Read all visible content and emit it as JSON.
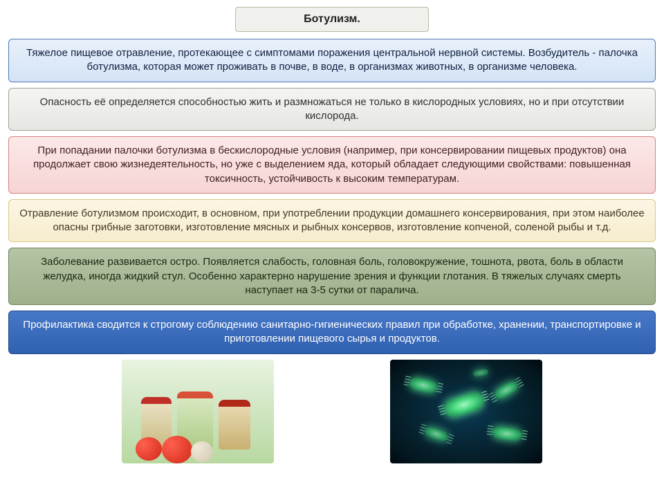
{
  "title": {
    "text": "Ботулизм.",
    "bg": "#f0f0ec",
    "border": "#b8b8a8",
    "text_color": "#202020",
    "fontsize": 16
  },
  "boxes": [
    {
      "text": "Тяжелое пищевое отравление, протекающее с симптомами поражения центральной нервной системы. Возбудитель - палочка ботулизма, которая может проживать в почве, в воде, в организмах животных, в организме человека.",
      "bg_top": "#e8f0fa",
      "bg_bottom": "#d4e4f6",
      "border": "#5078b0",
      "text_color": "#102040"
    },
    {
      "text": "Опасность её определяется способностью жить и размножаться не только в кислородных условиях, но и при отсутствии кислорода.",
      "bg_top": "#f4f4f2",
      "bg_bottom": "#e6e6e2",
      "border": "#a0a098",
      "text_color": "#303030"
    },
    {
      "text": "При попадании палочки ботулизма в бескислородные условия (например, при консервировании пищевых продуктов) она продолжает свою жизнедеятельность, но уже с выделением яда, который обладает следующими свойствами: повышенная токсичность, устойчивость к высоким температурам.",
      "bg_top": "#fce8e8",
      "bg_bottom": "#f6d4d4",
      "border": "#d88080",
      "text_color": "#402020"
    },
    {
      "text": "Отравление ботулизмом происходит, в основном, при употреблении продукции домашнего консервирования, при этом наиболее опасны грибные заготовки, изготовление мясных и рыбных консервов, изготовление копченой, соленой рыбы и т.д.",
      "bg_top": "#fcf6e4",
      "bg_bottom": "#f6ecce",
      "border": "#d8c888",
      "text_color": "#403820"
    },
    {
      "text": "Заболевание развивается остро. Появляется слабость, головная боль, головокружение, тошнота, рвота, боль в области желудка, иногда жидкий стул. Особенно характерно нарушение зрения и функции глотания. В тяжелых случаях смерть наступает на 3-5 сутки от паралича.",
      "bg_top": "#b4c4a4",
      "bg_bottom": "#9eb08c",
      "border": "#708060",
      "text_color": "#182810"
    },
    {
      "text": "Профилактика сводится к строгому соблюдению санитарно-гигиенических правил при обработке, хранении, транспортировке и приготовлении пищевого сырья и продуктов.",
      "bg_top": "#4878c8",
      "bg_bottom": "#3060b0",
      "border": "#204888",
      "text_color": "#ffffff"
    }
  ],
  "images": {
    "left_alt": "canned-vegetables",
    "right_alt": "bacteria-microscope"
  },
  "body_fontsize": 15
}
